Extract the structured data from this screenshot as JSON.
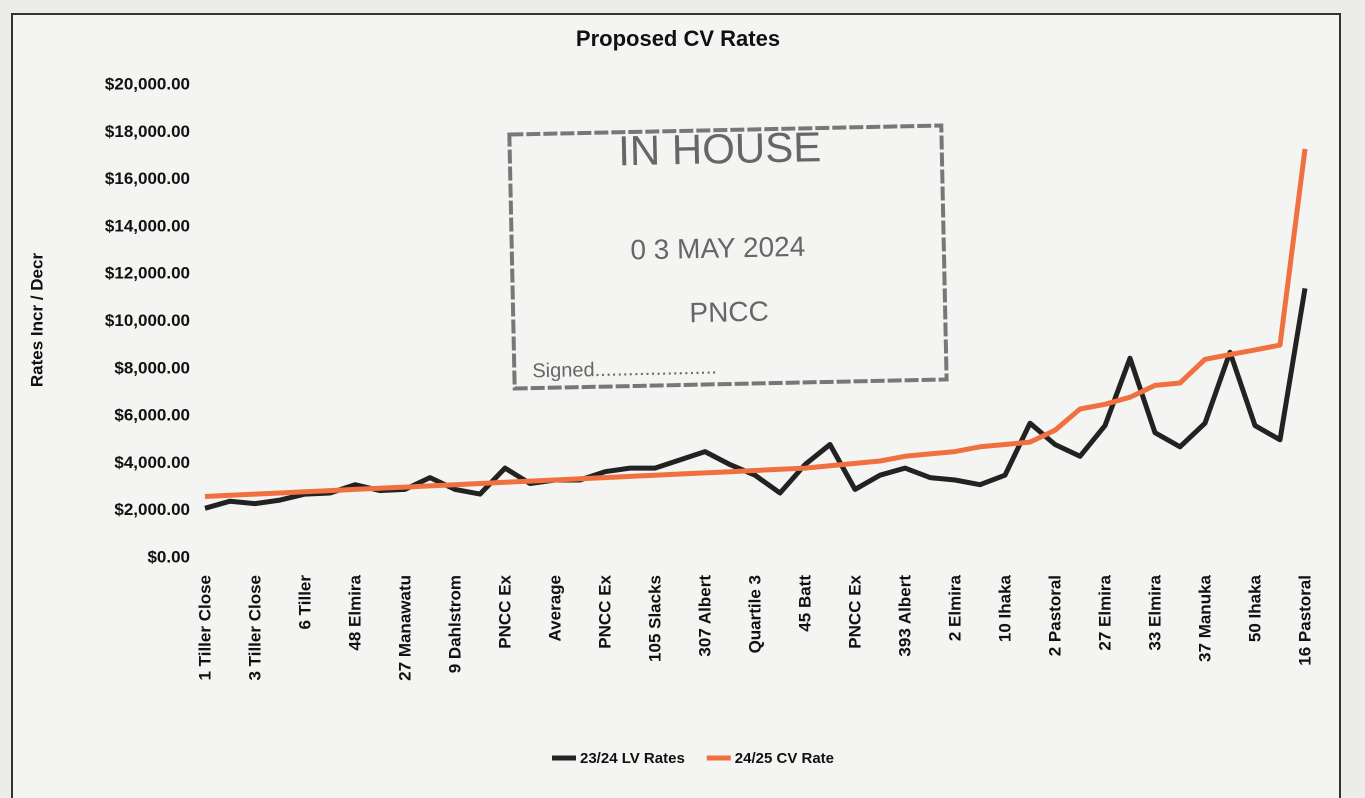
{
  "chart_data": {
    "type": "line",
    "title": "Proposed CV Rates",
    "ylabel": "Rates Incr / Decr",
    "categories": [
      "1 Tiller Close",
      null,
      "3 Tiller Close",
      null,
      "6 Tiller",
      null,
      "48 Elmira",
      null,
      "27 Manawatu",
      null,
      "9 Dahlstrom",
      null,
      "PNCC Ex",
      null,
      "Average",
      null,
      "PNCC Ex",
      null,
      "105 Slacks",
      null,
      "307 Albert",
      null,
      "Quartile 3",
      null,
      "45 Batt",
      null,
      "PNCC Ex",
      null,
      "393 Albert",
      null,
      "2 Elmira",
      null,
      "10 Ihaka",
      null,
      "2 Pastoral",
      null,
      "27 Elmira",
      null,
      "33 Elmira",
      null,
      "37 Manuka",
      null,
      "50 Ihaka",
      null,
      "16 Pastoral"
    ],
    "series": [
      {
        "name": "23/24 LV Rates",
        "color": "#222222",
        "values": [
          2100,
          2400,
          2300,
          2450,
          2700,
          2750,
          3100,
          2850,
          2900,
          3400,
          2900,
          2700,
          3800,
          3150,
          3300,
          3300,
          3650,
          3800,
          3800,
          4150,
          4500,
          3950,
          3500,
          2750,
          3950,
          4800,
          2900,
          3500,
          3800,
          3400,
          3300,
          3100,
          3500,
          5700,
          4800,
          4300,
          5600,
          8450,
          5300,
          4700,
          5700,
          8700,
          5600,
          5000,
          11400
        ]
      },
      {
        "name": "24/25 CV Rate",
        "color": "#f07040",
        "values": [
          2600,
          2650,
          2700,
          2750,
          2800,
          2850,
          2900,
          2950,
          3000,
          3050,
          3100,
          3150,
          3200,
          3250,
          3300,
          3350,
          3400,
          3450,
          3500,
          3550,
          3600,
          3650,
          3700,
          3750,
          3800,
          3900,
          4000,
          4100,
          4300,
          4400,
          4500,
          4700,
          4800,
          4900,
          5400,
          6300,
          6500,
          6800,
          7300,
          7400,
          8400,
          8600,
          8800,
          9000,
          17300
        ]
      }
    ],
    "ylim": [
      0,
      20000
    ],
    "yticks": [
      {
        "value": 0,
        "label": "$0.00"
      },
      {
        "value": 2000,
        "label": "$2,000.00"
      },
      {
        "value": 4000,
        "label": "$4,000.00"
      },
      {
        "value": 6000,
        "label": "$6,000.00"
      },
      {
        "value": 8000,
        "label": "$8,000.00"
      },
      {
        "value": 10000,
        "label": "$10,000.00"
      },
      {
        "value": 12000,
        "label": "$12,000.00"
      },
      {
        "value": 14000,
        "label": "$14,000.00"
      },
      {
        "value": 16000,
        "label": "$16,000.00"
      },
      {
        "value": 18000,
        "label": "$18,000.00"
      },
      {
        "value": 20000,
        "label": "$20,000.00"
      }
    ],
    "grid": false,
    "legend": "bottom"
  },
  "stamp": {
    "title": "IN HOUSE",
    "date": "0 3 MAY 2024",
    "org": "PNCC",
    "signed": "Signed......................"
  }
}
